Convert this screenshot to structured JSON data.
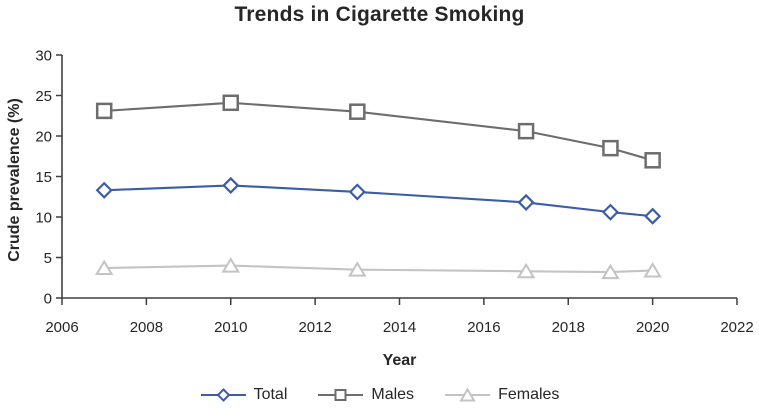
{
  "figure": {
    "title": "Trends in Cigarette Smoking"
  },
  "chart_data": {
    "type": "line",
    "title": "Trends in Cigarette Smoking",
    "xlabel": "Year",
    "ylabel": "Crude prevalence (%)",
    "xlim": [
      2006,
      2022
    ],
    "ylim": [
      0,
      30
    ],
    "x_ticks": [
      2006,
      2008,
      2010,
      2012,
      2014,
      2016,
      2018,
      2020,
      2022
    ],
    "y_ticks": [
      0,
      5,
      10,
      15,
      20,
      25,
      30
    ],
    "grid": false,
    "legend_position": "bottom-center",
    "x": [
      2007,
      2010,
      2013,
      2017,
      2019,
      2020
    ],
    "series": [
      {
        "name": "Total",
        "marker": "diamond",
        "color": "#3b5ca8",
        "values": [
          13.3,
          13.9,
          13.1,
          11.8,
          10.6,
          10.1
        ]
      },
      {
        "name": "Males",
        "marker": "square",
        "color": "#6d6d6d",
        "values": [
          23.1,
          24.1,
          23.0,
          20.6,
          18.5,
          17.0
        ]
      },
      {
        "name": "Females",
        "marker": "triangle",
        "color": "#c3c3c3",
        "values": [
          3.7,
          4.0,
          3.5,
          3.3,
          3.2,
          3.4
        ]
      }
    ],
    "axis_color": "#3f3f3f",
    "text_color": "#262626"
  }
}
